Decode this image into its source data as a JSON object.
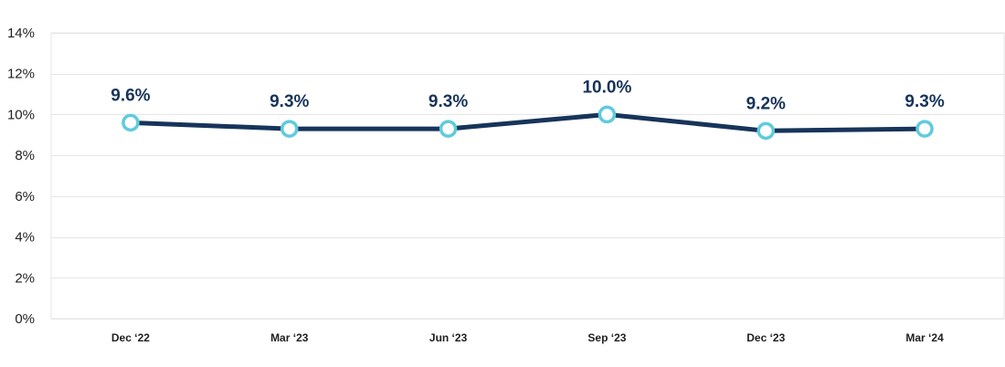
{
  "chart_data": {
    "type": "line",
    "categories": [
      "Dec ‘22",
      "Mar ‘23",
      "Jun ‘23",
      "Sep ‘23",
      "Dec ‘23",
      "Mar ‘24"
    ],
    "values": [
      9.6,
      9.3,
      9.3,
      10.0,
      9.2,
      9.3
    ],
    "data_labels": [
      "9.6%",
      "9.3%",
      "9.3%",
      "10.0%",
      "9.2%",
      "9.3%"
    ],
    "yticks": [
      0,
      2,
      4,
      6,
      8,
      10,
      12,
      14
    ],
    "ytick_labels": [
      "0%",
      "2%",
      "4%",
      "6%",
      "8%",
      "10%",
      "12%",
      "14%"
    ],
    "ylim": [
      0,
      14
    ],
    "title": "",
    "xlabel": "",
    "ylabel": "",
    "grid": true,
    "legend": "none",
    "colors": {
      "line": "#17345a",
      "marker_stroke": "#5fcbdc",
      "marker_fill": "#ffffff",
      "label": "#17345a",
      "grid": "#e6e6e6",
      "axis_text": "#1f1f1f"
    }
  }
}
